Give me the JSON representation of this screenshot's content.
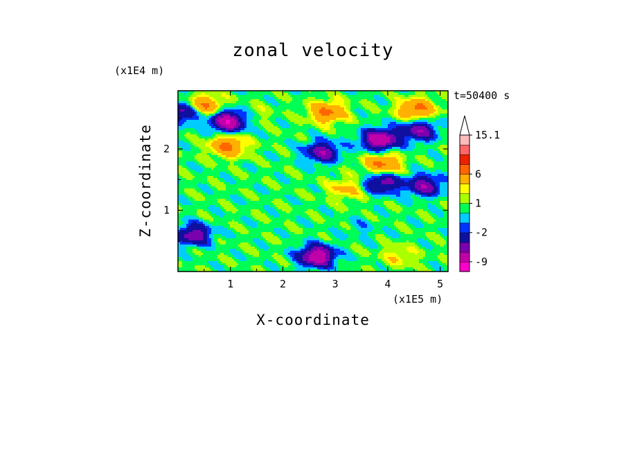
{
  "chart_data": {
    "type": "heatmap",
    "title": "zonal velocity",
    "xlabel": "X-coordinate",
    "ylabel": "Z-coordinate",
    "x_unit": "(x1E5 m)",
    "y_unit": "(x1E4 m)",
    "time_label": "t=50400 s",
    "xlim": [
      0,
      5.15
    ],
    "ylim": [
      0,
      2.95
    ],
    "x_ticks": [
      "1",
      "2",
      "3",
      "4",
      "5"
    ],
    "y_ticks": [
      "1",
      "2"
    ],
    "colorbar": {
      "levels": [
        "-11",
        "-9",
        "-6",
        "-4",
        "-2",
        "-1",
        "0",
        "1",
        "2",
        "3",
        "6",
        "9",
        "12",
        "15.1"
      ],
      "tick_labels": [
        "15.1",
        "6",
        "1",
        "-2",
        "-9"
      ],
      "colors": [
        "#ff00cc",
        "#c000a8",
        "#7a00b0",
        "#1010a0",
        "#0033ff",
        "#00ccff",
        "#00ff55",
        "#aaff00",
        "#ffff00",
        "#ffb000",
        "#ff6600",
        "#ee2200",
        "#ff6666",
        "#ffbbbb"
      ],
      "extend": "max"
    },
    "features": [
      {
        "x": 0.1,
        "z": 2.6,
        "value": -6
      },
      {
        "x": 0.5,
        "z": 2.7,
        "value": 6
      },
      {
        "x": 0.95,
        "z": 2.45,
        "value": -9
      },
      {
        "x": 1.45,
        "z": 2.55,
        "value": 1
      },
      {
        "x": 0.95,
        "z": 2.05,
        "value": 6
      },
      {
        "x": 2.75,
        "z": 1.95,
        "value": -6
      },
      {
        "x": 2.85,
        "z": 2.6,
        "value": 6
      },
      {
        "x": 3.85,
        "z": 2.15,
        "value": -9
      },
      {
        "x": 4.6,
        "z": 2.3,
        "value": -6
      },
      {
        "x": 4.55,
        "z": 2.65,
        "value": 6
      },
      {
        "x": 3.9,
        "z": 1.75,
        "value": 6
      },
      {
        "x": 3.9,
        "z": 1.45,
        "value": -6
      },
      {
        "x": 4.7,
        "z": 1.4,
        "value": -6
      },
      {
        "x": 3.2,
        "z": 1.35,
        "value": 3
      },
      {
        "x": 3.5,
        "z": 0.7,
        "value": -1
      },
      {
        "x": 2.65,
        "z": 0.25,
        "value": -9
      },
      {
        "x": 4.2,
        "z": 0.25,
        "value": 2
      },
      {
        "x": 1.5,
        "z": 0.45,
        "value": 0
      },
      {
        "x": 0.3,
        "z": 0.6,
        "value": -6
      }
    ]
  }
}
